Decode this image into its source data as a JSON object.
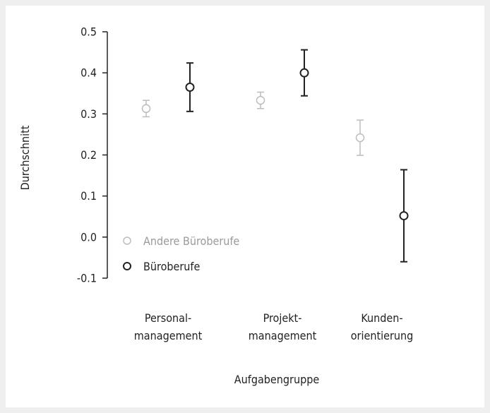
{
  "chart_data": {
    "type": "scatter",
    "subtype": "point-with-error-bars",
    "xlabel": "Aufgabengruppe",
    "ylabel": "Durchschnitt",
    "ylim": [
      -0.1,
      0.5
    ],
    "yticks": [
      "0.5",
      "0.4",
      "0.3",
      "0.2",
      "0.1",
      "0.0",
      "-0.1"
    ],
    "categories": [
      {
        "line1": "Personal-",
        "line2": "management"
      },
      {
        "line1": "Projekt-",
        "line2": "management"
      },
      {
        "line1": "Kunden-",
        "line2": "orientierung"
      }
    ],
    "series": [
      {
        "name": "Andere Büroberufe",
        "color": "#bdbdbd",
        "points": [
          {
            "mean": 0.313,
            "lower": 0.293,
            "upper": 0.333
          },
          {
            "mean": 0.333,
            "lower": 0.313,
            "upper": 0.353
          },
          {
            "mean": 0.242,
            "lower": 0.199,
            "upper": 0.285
          }
        ]
      },
      {
        "name": "Büroberufe",
        "color": "#222222",
        "points": [
          {
            "mean": 0.365,
            "lower": 0.306,
            "upper": 0.424
          },
          {
            "mean": 0.4,
            "lower": 0.344,
            "upper": 0.456
          },
          {
            "mean": 0.052,
            "lower": -0.06,
            "upper": 0.164
          }
        ]
      }
    ],
    "legend": {
      "placement": "lower-left",
      "entries": [
        "Andere Büroberufe",
        "Büroberufe"
      ]
    },
    "grid": false
  }
}
